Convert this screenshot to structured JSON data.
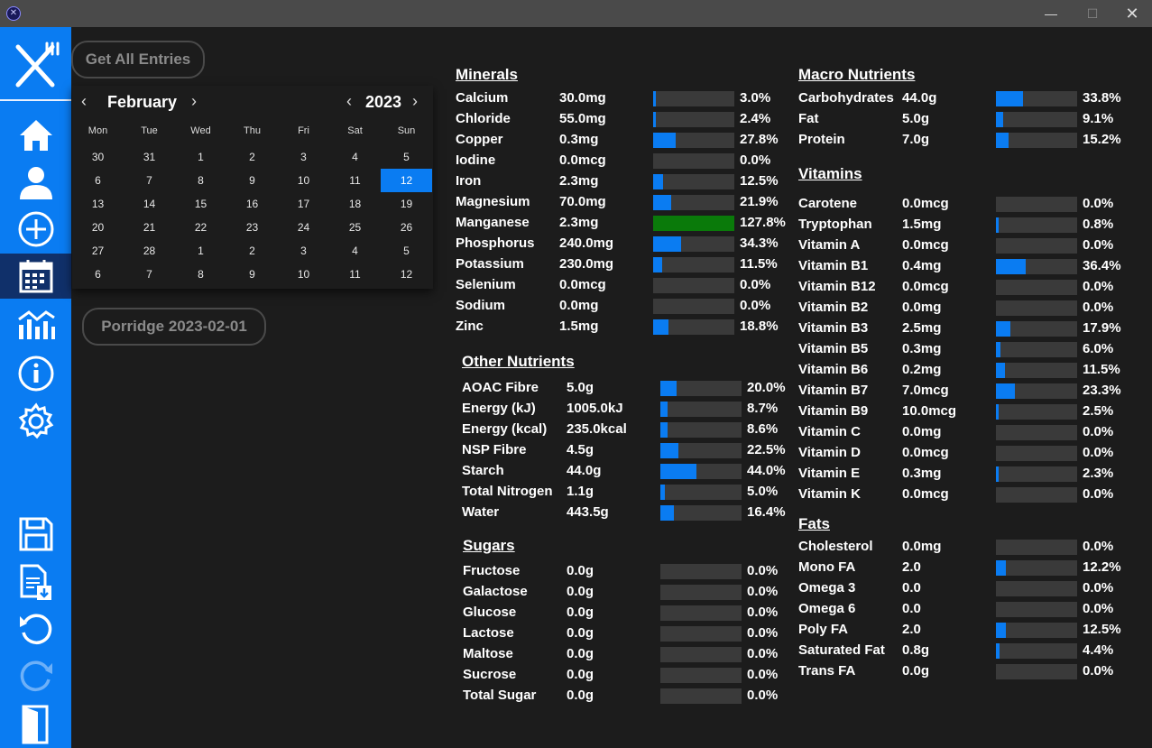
{
  "window": {
    "app_icon": "app-icon",
    "min": "—",
    "max": "☐",
    "close": "✕"
  },
  "sidebar": {
    "items": [
      {
        "name": "home-icon"
      },
      {
        "name": "profile-icon"
      },
      {
        "name": "add-icon"
      },
      {
        "name": "calendar-icon",
        "active": true
      },
      {
        "name": "chart-icon"
      },
      {
        "name": "info-icon"
      },
      {
        "name": "settings-icon"
      },
      {
        "name": "save-icon"
      },
      {
        "name": "export-icon"
      },
      {
        "name": "undo-icon"
      },
      {
        "name": "redo-icon"
      },
      {
        "name": "exit-icon"
      }
    ]
  },
  "buttons": {
    "get_all": "Get All Entries",
    "entry": "Porridge 2023-02-01"
  },
  "calendar": {
    "month": "February",
    "year": "2023",
    "weekdays": [
      "Mon",
      "Tue",
      "Wed",
      "Thu",
      "Fri",
      "Sat",
      "Sun"
    ],
    "weeks": [
      [
        "30",
        "31",
        "1",
        "2",
        "3",
        "4",
        "5"
      ],
      [
        "6",
        "7",
        "8",
        "9",
        "10",
        "11",
        "12"
      ],
      [
        "13",
        "14",
        "15",
        "16",
        "17",
        "18",
        "19"
      ],
      [
        "20",
        "21",
        "22",
        "23",
        "24",
        "25",
        "26"
      ],
      [
        "27",
        "28",
        "1",
        "2",
        "3",
        "4",
        "5"
      ],
      [
        "6",
        "7",
        "8",
        "9",
        "10",
        "11",
        "12"
      ]
    ],
    "selected": "12"
  },
  "sections": [
    {
      "title": "Minerals",
      "items": [
        {
          "name": "Calcium",
          "value": "30.0mg",
          "pct": "3.0%",
          "frac": 0.03
        },
        {
          "name": "Chloride",
          "value": "55.0mg",
          "pct": "2.4%",
          "frac": 0.024
        },
        {
          "name": "Copper",
          "value": "0.3mg",
          "pct": "27.8%",
          "frac": 0.278
        },
        {
          "name": "Iodine",
          "value": "0.0mcg",
          "pct": "0.0%",
          "frac": 0
        },
        {
          "name": "Iron",
          "value": "2.3mg",
          "pct": "12.5%",
          "frac": 0.125
        },
        {
          "name": "Magnesium",
          "value": "70.0mg",
          "pct": "21.9%",
          "frac": 0.219
        },
        {
          "name": "Manganese",
          "value": "2.3mg",
          "pct": "127.8%",
          "frac": 1.278
        },
        {
          "name": "Phosphorus",
          "value": "240.0mg",
          "pct": "34.3%",
          "frac": 0.343
        },
        {
          "name": "Potassium",
          "value": "230.0mg",
          "pct": "11.5%",
          "frac": 0.115
        },
        {
          "name": "Selenium",
          "value": "0.0mcg",
          "pct": "0.0%",
          "frac": 0
        },
        {
          "name": "Sodium",
          "value": "0.0mg",
          "pct": "0.0%",
          "frac": 0
        },
        {
          "name": "Zinc",
          "value": "1.5mg",
          "pct": "18.8%",
          "frac": 0.188
        }
      ]
    },
    {
      "title": "Other Nutrients",
      "items": [
        {
          "name": "AOAC Fibre",
          "value": "5.0g",
          "pct": "20.0%",
          "frac": 0.2
        },
        {
          "name": "Energy (kJ)",
          "value": "1005.0kJ",
          "pct": "8.7%",
          "frac": 0.087
        },
        {
          "name": "Energy (kcal)",
          "value": "235.0kcal",
          "pct": "8.6%",
          "frac": 0.086
        },
        {
          "name": "NSP Fibre",
          "value": "4.5g",
          "pct": "22.5%",
          "frac": 0.225
        },
        {
          "name": "Starch",
          "value": "44.0g",
          "pct": "44.0%",
          "frac": 0.44
        },
        {
          "name": "Total Nitrogen",
          "value": "1.1g",
          "pct": "5.0%",
          "frac": 0.05
        },
        {
          "name": "Water",
          "value": "443.5g",
          "pct": "16.4%",
          "frac": 0.164
        }
      ]
    },
    {
      "title": "Sugars",
      "items": [
        {
          "name": "Fructose",
          "value": "0.0g",
          "pct": "0.0%",
          "frac": 0
        },
        {
          "name": "Galactose",
          "value": "0.0g",
          "pct": "0.0%",
          "frac": 0
        },
        {
          "name": "Glucose",
          "value": "0.0g",
          "pct": "0.0%",
          "frac": 0
        },
        {
          "name": "Lactose",
          "value": "0.0g",
          "pct": "0.0%",
          "frac": 0
        },
        {
          "name": "Maltose",
          "value": "0.0g",
          "pct": "0.0%",
          "frac": 0
        },
        {
          "name": "Sucrose",
          "value": "0.0g",
          "pct": "0.0%",
          "frac": 0
        },
        {
          "name": "Total Sugar",
          "value": "0.0g",
          "pct": "0.0%",
          "frac": 0
        }
      ]
    },
    {
      "title": "Macro Nutrients",
      "items": [
        {
          "name": "Carbohydrates",
          "value": "44.0g",
          "pct": "33.8%",
          "frac": 0.338
        },
        {
          "name": "Fat",
          "value": "5.0g",
          "pct": "9.1%",
          "frac": 0.091
        },
        {
          "name": "Protein",
          "value": "7.0g",
          "pct": "15.2%",
          "frac": 0.152
        }
      ]
    },
    {
      "title": "Vitamins",
      "items": [
        {
          "name": "Carotene",
          "value": "0.0mcg",
          "pct": "0.0%",
          "frac": 0
        },
        {
          "name": "Tryptophan",
          "value": "1.5mg",
          "pct": "0.8%",
          "frac": 0.008
        },
        {
          "name": "Vitamin A",
          "value": "0.0mcg",
          "pct": "0.0%",
          "frac": 0
        },
        {
          "name": "Vitamin B1",
          "value": "0.4mg",
          "pct": "36.4%",
          "frac": 0.364
        },
        {
          "name": "Vitamin B12",
          "value": "0.0mcg",
          "pct": "0.0%",
          "frac": 0
        },
        {
          "name": "Vitamin B2",
          "value": "0.0mg",
          "pct": "0.0%",
          "frac": 0
        },
        {
          "name": "Vitamin B3",
          "value": "2.5mg",
          "pct": "17.9%",
          "frac": 0.179
        },
        {
          "name": "Vitamin B5",
          "value": "0.3mg",
          "pct": "6.0%",
          "frac": 0.06
        },
        {
          "name": "Vitamin B6",
          "value": "0.2mg",
          "pct": "11.5%",
          "frac": 0.115
        },
        {
          "name": "Vitamin B7",
          "value": "7.0mcg",
          "pct": "23.3%",
          "frac": 0.233
        },
        {
          "name": "Vitamin B9",
          "value": "10.0mcg",
          "pct": "2.5%",
          "frac": 0.025
        },
        {
          "name": "Vitamin C",
          "value": "0.0mg",
          "pct": "0.0%",
          "frac": 0
        },
        {
          "name": "Vitamin D",
          "value": "0.0mcg",
          "pct": "0.0%",
          "frac": 0
        },
        {
          "name": "Vitamin E",
          "value": "0.3mg",
          "pct": "2.3%",
          "frac": 0.023
        },
        {
          "name": "Vitamin K",
          "value": "0.0mcg",
          "pct": "0.0%",
          "frac": 0
        }
      ]
    },
    {
      "title": "Fats",
      "items": [
        {
          "name": "Cholesterol",
          "value": "0.0mg",
          "pct": "0.0%",
          "frac": 0
        },
        {
          "name": "Mono FA",
          "value": "2.0",
          "pct": "12.2%",
          "frac": 0.122
        },
        {
          "name": "Omega 3",
          "value": "0.0",
          "pct": "0.0%",
          "frac": 0
        },
        {
          "name": "Omega 6",
          "value": "0.0",
          "pct": "0.0%",
          "frac": 0
        },
        {
          "name": "Poly FA",
          "value": "2.0",
          "pct": "12.5%",
          "frac": 0.125
        },
        {
          "name": "Saturated Fat",
          "value": "0.8g",
          "pct": "4.4%",
          "frac": 0.044
        },
        {
          "name": "Trans FA",
          "value": "0.0g",
          "pct": "0.0%",
          "frac": 0
        }
      ]
    }
  ],
  "colors": {
    "accent": "#0a7cf2",
    "over": "#0a7a0a",
    "bar_bg": "#3a3a3a",
    "bg": "#1c1c1c"
  }
}
